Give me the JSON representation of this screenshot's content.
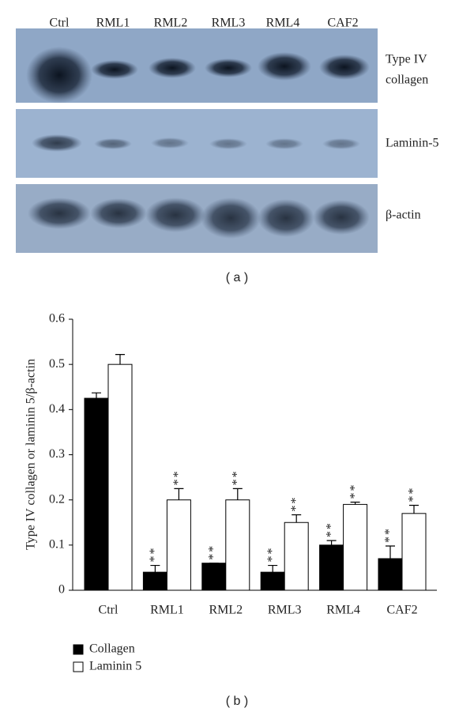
{
  "blot": {
    "lanes": [
      "Ctrl",
      "RML1",
      "RML2",
      "RML3",
      "RML4",
      "CAF2"
    ],
    "rows": [
      [
        "Type IV",
        "collagen"
      ],
      [
        "Laminin-5"
      ],
      [
        "β-actin"
      ]
    ],
    "panel_label": "( a )"
  },
  "chart_data": {
    "type": "bar",
    "panel_label": "( b )",
    "y_label": "Type IV collagen or laminin 5/β-actin",
    "categories": [
      "Ctrl",
      "RML1",
      "RML2",
      "RML3",
      "RML4",
      "CAF2"
    ],
    "series": [
      {
        "name": "Collagen",
        "color": "#000000",
        "values": [
          0.425,
          0.04,
          0.06,
          0.04,
          0.1,
          0.07
        ],
        "errors": [
          0.012,
          0.015,
          0,
          0.015,
          0.01,
          0.028
        ],
        "annotations": [
          null,
          "**",
          "**",
          "**",
          "**",
          "**"
        ]
      },
      {
        "name": "Laminin 5",
        "color": "#ffffff",
        "values": [
          0.5,
          0.2,
          0.2,
          0.15,
          0.19,
          0.17
        ],
        "errors": [
          0.022,
          0.025,
          0.025,
          0.017,
          0.005,
          0.018
        ],
        "annotations": [
          null,
          "**",
          "**",
          "**",
          "**",
          "**"
        ]
      }
    ],
    "ylim": [
      0,
      0.6
    ],
    "yticks": [
      0,
      0.1,
      0.2,
      0.3,
      0.4,
      0.5,
      0.6
    ],
    "grid": false
  }
}
